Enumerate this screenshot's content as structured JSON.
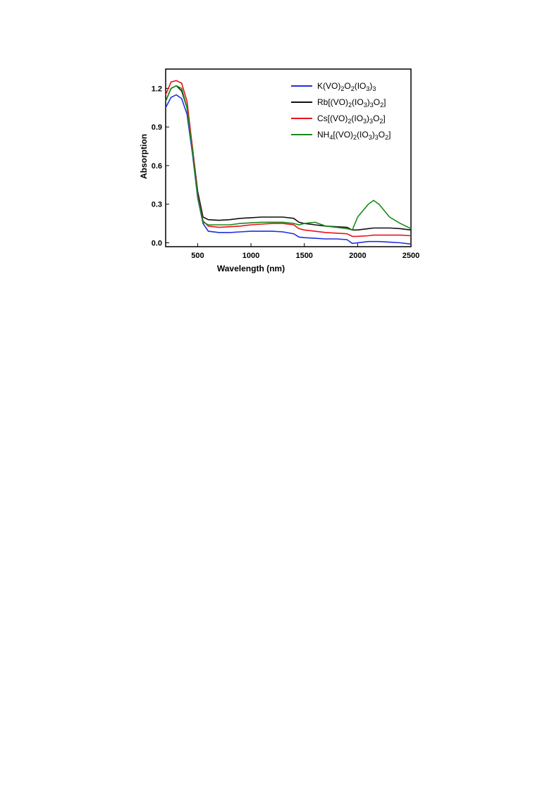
{
  "chart_data": {
    "type": "line",
    "x_label": "Wavelength (nm)",
    "y_label": "Absorption",
    "xlim": [
      200,
      2500
    ],
    "ylim": [
      -0.03,
      1.35
    ],
    "xticks": [
      500,
      1000,
      1500,
      2000,
      2500
    ],
    "yticks": [
      {
        "value": 0,
        "label": "0.0"
      },
      0.3,
      0.6,
      0.9,
      1.2
    ],
    "legend": "upper right",
    "x": [
      200,
      250,
      300,
      350,
      400,
      450,
      500,
      550,
      600,
      700,
      800,
      900,
      1000,
      1100,
      1200,
      1300,
      1400,
      1450,
      1500,
      1600,
      1700,
      1800,
      1900,
      1950,
      2000,
      2100,
      2150,
      2200,
      2300,
      2400,
      2500
    ],
    "series": [
      {
        "name": "K(VO)2O2(IO3)3",
        "color": "#1f2fe0",
        "values": [
          1.05,
          1.13,
          1.15,
          1.12,
          1.0,
          0.7,
          0.35,
          0.15,
          0.09,
          0.08,
          0.08,
          0.085,
          0.09,
          0.09,
          0.09,
          0.085,
          0.07,
          0.045,
          0.04,
          0.035,
          0.03,
          0.03,
          0.025,
          -0.005,
          0.0,
          0.01,
          0.01,
          0.01,
          0.005,
          0.0,
          -0.01
        ]
      },
      {
        "name": "Rb[(VO)2(IO3)3O2]",
        "color": "#111111",
        "values": [
          1.1,
          1.2,
          1.22,
          1.18,
          1.05,
          0.75,
          0.4,
          0.2,
          0.18,
          0.175,
          0.18,
          0.19,
          0.195,
          0.2,
          0.2,
          0.2,
          0.19,
          0.16,
          0.15,
          0.14,
          0.13,
          0.125,
          0.12,
          0.1,
          0.1,
          0.11,
          0.115,
          0.115,
          0.115,
          0.11,
          0.1
        ]
      },
      {
        "name": "Cs[(VO)2(IO3)3O2]",
        "color": "#e8141a",
        "values": [
          1.15,
          1.25,
          1.26,
          1.24,
          1.1,
          0.75,
          0.37,
          0.17,
          0.13,
          0.12,
          0.125,
          0.13,
          0.14,
          0.145,
          0.15,
          0.15,
          0.14,
          0.11,
          0.1,
          0.09,
          0.08,
          0.075,
          0.07,
          0.05,
          0.05,
          0.055,
          0.06,
          0.06,
          0.06,
          0.06,
          0.055
        ]
      },
      {
        "name": "NH4[(VO)2(IO3)3O2]",
        "color": "#1a8a1a",
        "values": [
          1.1,
          1.2,
          1.22,
          1.2,
          1.05,
          0.72,
          0.36,
          0.16,
          0.14,
          0.14,
          0.14,
          0.15,
          0.155,
          0.16,
          0.16,
          0.16,
          0.15,
          0.14,
          0.15,
          0.16,
          0.13,
          0.12,
          0.11,
          0.1,
          0.2,
          0.3,
          0.33,
          0.3,
          0.2,
          0.15,
          0.11
        ]
      }
    ]
  }
}
